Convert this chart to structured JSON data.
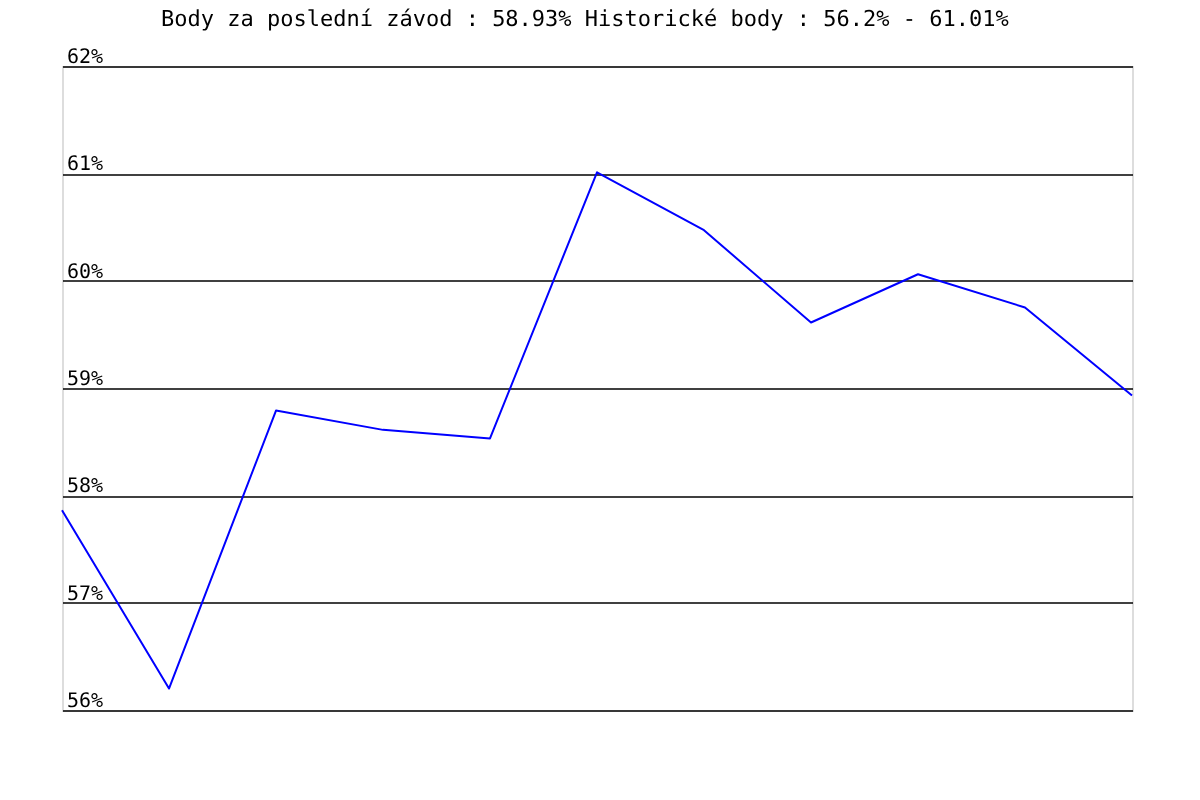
{
  "chart_data": {
    "type": "line",
    "title": "Body za poslední závod : 58.93%  Historické body : 56.2% - 61.01%",
    "categories": [
      null,
      null,
      null,
      null,
      null,
      null,
      null,
      null,
      null,
      null,
      null
    ],
    "series": [
      {
        "color": "#0000ff",
        "values": [
          57.86,
          56.2,
          58.79,
          58.61,
          58.53,
          61.01,
          60.47,
          59.61,
          60.06,
          59.75,
          58.93
        ]
      }
    ],
    "ylim": [
      56,
      62
    ],
    "yticks": [
      {
        "value": 56,
        "label": "56%"
      },
      {
        "value": 57,
        "label": "57%"
      },
      {
        "value": 58,
        "label": "58%"
      },
      {
        "value": 59,
        "label": "59%"
      },
      {
        "value": 60,
        "label": "60%"
      },
      {
        "value": 61,
        "label": "61%"
      },
      {
        "value": 62,
        "label": "62%"
      }
    ],
    "grid": "y",
    "marker": "none",
    "line_style": "solid"
  }
}
